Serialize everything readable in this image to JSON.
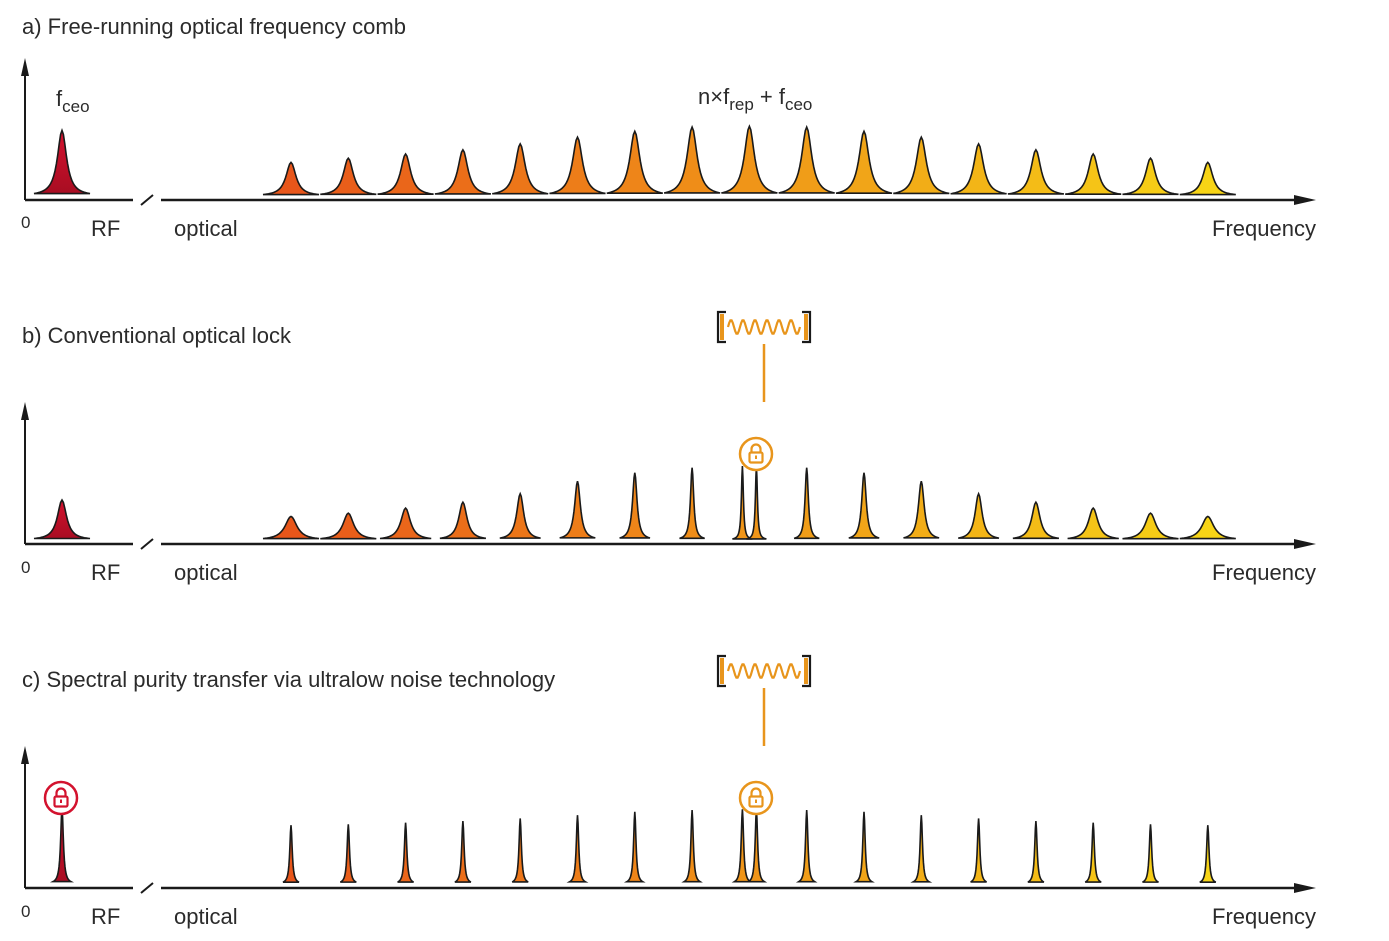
{
  "colors": {
    "rf_peak": "#d3122e",
    "comb_start": "#e8561a",
    "comb_end": "#f7d416",
    "lock_orange": "#e8951c",
    "lock_red": "#d3122e",
    "cavity": "#e8951c",
    "axis": "#1a1a1a"
  },
  "icons": {
    "lock": "padlock-icon",
    "cavity": "optical-cavity-spring-icon"
  },
  "axis_labels": {
    "zero": "0",
    "rf": "RF",
    "optical": "optical",
    "frequency": "Frequency"
  },
  "annotations": {
    "fceo_base": "f",
    "fceo_sub": "ceo",
    "formula_n": "n×f",
    "formula_rep": "rep",
    "formula_plus": " + f",
    "formula_ceo": "ceo"
  },
  "panels": [
    {
      "id": "a",
      "title": "a) Free-running optical frequency comb",
      "linewidth": "broad",
      "heights": [
        0.4,
        0.45,
        0.5,
        0.55,
        0.62,
        0.7,
        0.77,
        0.82,
        0.83,
        0.82,
        0.77,
        0.7,
        0.62,
        0.55,
        0.5,
        0.45,
        0.4
      ],
      "rf_height": 0.82,
      "rf_locked": false,
      "optical_locked": false,
      "cavity": false
    },
    {
      "id": "b",
      "title": "b) Conventional optical lock",
      "linewidth": "mixed",
      "heights": [
        0.28,
        0.32,
        0.38,
        0.45,
        0.55,
        0.7,
        0.8,
        0.86,
        0.88,
        0.86,
        0.8,
        0.7,
        0.55,
        0.45,
        0.38,
        0.32,
        0.28
      ],
      "rf_height": 0.5,
      "rf_locked": false,
      "optical_locked": true,
      "cavity": true
    },
    {
      "id": "c",
      "title": "c) Spectral purity transfer via ultralow noise technology",
      "linewidth": "narrow",
      "heights": [
        0.7,
        0.71,
        0.73,
        0.75,
        0.78,
        0.82,
        0.86,
        0.88,
        0.89,
        0.88,
        0.86,
        0.82,
        0.78,
        0.75,
        0.73,
        0.71,
        0.7
      ],
      "rf_height": 0.95,
      "rf_locked": true,
      "optical_locked": true,
      "cavity": true
    }
  ]
}
